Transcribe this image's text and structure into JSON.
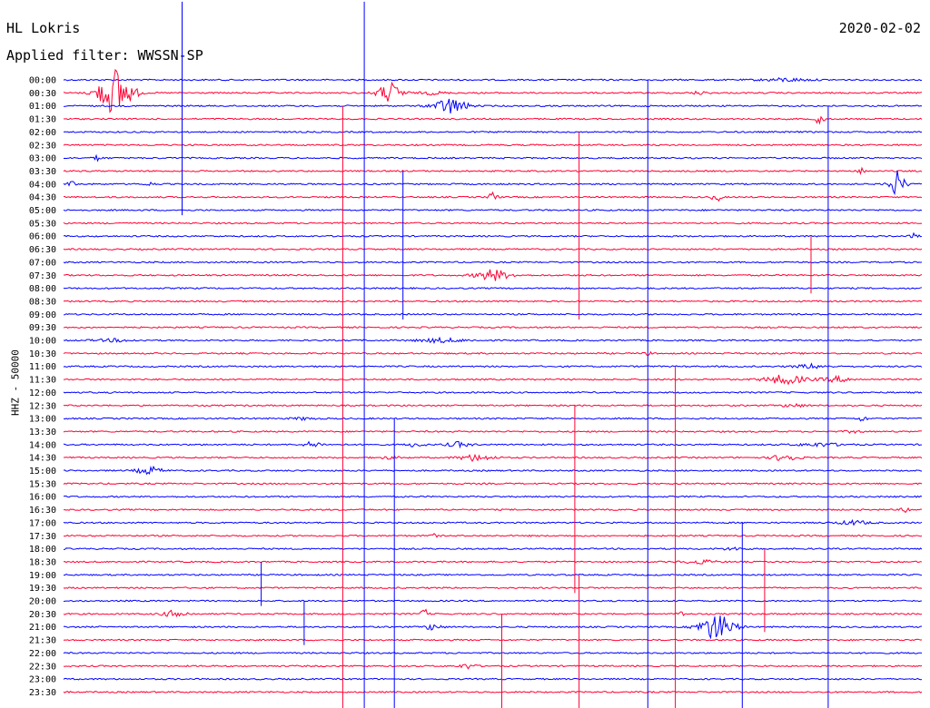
{
  "header": {
    "station": "HL Lokris",
    "date": "2020-02-02",
    "filter": "Applied filter: WWSSN-SP"
  },
  "chart_data": {
    "type": "line",
    "title": "HL Lokris",
    "ylabel": "HHZ - 50000",
    "row_labels": [
      "00:00",
      "00:30",
      "01:00",
      "01:30",
      "02:00",
      "02:30",
      "03:00",
      "03:30",
      "04:00",
      "04:30",
      "05:00",
      "05:30",
      "06:00",
      "06:30",
      "07:00",
      "07:30",
      "08:00",
      "08:30",
      "09:00",
      "09:30",
      "10:00",
      "10:30",
      "11:00",
      "11:30",
      "12:00",
      "12:30",
      "13:00",
      "13:30",
      "14:00",
      "14:30",
      "15:00",
      "15:30",
      "16:00",
      "16:30",
      "17:00",
      "17:30",
      "18:00",
      "18:30",
      "19:00",
      "19:30",
      "20:00",
      "20:30",
      "21:00",
      "21:30",
      "22:00",
      "22:30",
      "23:00",
      "23:30"
    ],
    "x_range_minutes": [
      0,
      30
    ],
    "colors": [
      "#0000ff",
      "#ff0033"
    ],
    "events": [
      {
        "row": 0,
        "t": 0.84,
        "amp": 0.4,
        "dur": 0.06
      },
      {
        "row": 1,
        "t": 0.06,
        "amp": 6,
        "dur": 0.04
      },
      {
        "row": 1,
        "t": 0.38,
        "amp": 2.5,
        "dur": 0.03
      },
      {
        "row": 1,
        "t": 0.43,
        "amp": 0.4,
        "dur": 0.03
      },
      {
        "row": 1,
        "t": 0.74,
        "amp": 0.4,
        "dur": 0.02
      },
      {
        "row": 2,
        "t": 0.45,
        "amp": 2,
        "dur": 0.04
      },
      {
        "row": 3,
        "t": 0.88,
        "amp": 1.5,
        "dur": 0.01
      },
      {
        "row": 6,
        "t": 0.04,
        "amp": 0.7,
        "dur": 0.01
      },
      {
        "row": 7,
        "t": 0.93,
        "amp": 0.8,
        "dur": 0.01
      },
      {
        "row": 8,
        "t": 0.01,
        "amp": 0.7,
        "dur": 0.01
      },
      {
        "row": 8,
        "t": 0.1,
        "amp": 0.5,
        "dur": 0.01
      },
      {
        "row": 8,
        "t": 0.97,
        "amp": 3,
        "dur": 0.02
      },
      {
        "row": 9,
        "t": 0.5,
        "amp": 1.5,
        "dur": 0.01
      },
      {
        "row": 9,
        "t": 0.76,
        "amp": 1.5,
        "dur": 0.01
      },
      {
        "row": 12,
        "t": 0.99,
        "amp": 0.6,
        "dur": 0.01
      },
      {
        "row": 15,
        "t": 0.5,
        "amp": 1.5,
        "dur": 0.04
      },
      {
        "row": 20,
        "t": 0.44,
        "amp": 0.5,
        "dur": 0.06
      },
      {
        "row": 20,
        "t": 0.06,
        "amp": 0.3,
        "dur": 0.05
      },
      {
        "row": 21,
        "t": 0.68,
        "amp": 0.4,
        "dur": 0.01
      },
      {
        "row": 22,
        "t": 0.87,
        "amp": 0.5,
        "dur": 0.04
      },
      {
        "row": 23,
        "t": 0.84,
        "amp": 1.2,
        "dur": 0.05
      },
      {
        "row": 23,
        "t": 0.9,
        "amp": 0.6,
        "dur": 0.04
      },
      {
        "row": 25,
        "t": 0.85,
        "amp": 0.4,
        "dur": 0.03
      },
      {
        "row": 26,
        "t": 0.93,
        "amp": 0.8,
        "dur": 0.01
      },
      {
        "row": 26,
        "t": 0.28,
        "amp": 0.3,
        "dur": 0.03
      },
      {
        "row": 27,
        "t": 0.92,
        "amp": 0.3,
        "dur": 0.02
      },
      {
        "row": 28,
        "t": 0.29,
        "amp": 0.8,
        "dur": 0.02
      },
      {
        "row": 28,
        "t": 0.41,
        "amp": 0.6,
        "dur": 0.02
      },
      {
        "row": 28,
        "t": 0.46,
        "amp": 0.6,
        "dur": 0.03
      },
      {
        "row": 28,
        "t": 0.88,
        "amp": 0.4,
        "dur": 0.06
      },
      {
        "row": 29,
        "t": 0.48,
        "amp": 0.8,
        "dur": 0.04
      },
      {
        "row": 29,
        "t": 0.84,
        "amp": 1,
        "dur": 0.03
      },
      {
        "row": 29,
        "t": 0.38,
        "amp": 0.3,
        "dur": 0.03
      },
      {
        "row": 30,
        "t": 0.1,
        "amp": 1,
        "dur": 0.03
      },
      {
        "row": 33,
        "t": 0.98,
        "amp": 0.8,
        "dur": 0.01
      },
      {
        "row": 34,
        "t": 0.92,
        "amp": 0.5,
        "dur": 0.04
      },
      {
        "row": 35,
        "t": 0.43,
        "amp": 0.5,
        "dur": 0.01
      },
      {
        "row": 36,
        "t": 0.78,
        "amp": 0.3,
        "dur": 0.03
      },
      {
        "row": 37,
        "t": 0.74,
        "amp": 0.5,
        "dur": 0.04
      },
      {
        "row": 41,
        "t": 0.13,
        "amp": 0.9,
        "dur": 0.03
      },
      {
        "row": 41,
        "t": 0.42,
        "amp": 1.2,
        "dur": 0.01
      },
      {
        "row": 41,
        "t": 0.72,
        "amp": 0.6,
        "dur": 0.01
      },
      {
        "row": 42,
        "t": 0.43,
        "amp": 0.8,
        "dur": 0.02
      },
      {
        "row": 42,
        "t": 0.76,
        "amp": 3.5,
        "dur": 0.04
      },
      {
        "row": 45,
        "t": 0.47,
        "amp": 0.6,
        "dur": 0.02
      }
    ],
    "spikes": [
      {
        "t": 0.138,
        "row_from": -6,
        "row_to": 9
      },
      {
        "t": 0.325,
        "row_from": 2,
        "row_to": 47
      },
      {
        "t": 0.35,
        "row_from": -6,
        "row_to": 47
      },
      {
        "t": 0.395,
        "row_from": 7,
        "row_to": 17
      },
      {
        "t": 0.385,
        "row_from": 26,
        "row_to": 47
      },
      {
        "t": 0.6,
        "row_from": 4,
        "row_to": 17
      },
      {
        "t": 0.595,
        "row_from": 25,
        "row_to": 38
      },
      {
        "t": 0.6,
        "row_from": 38,
        "row_to": 47
      },
      {
        "t": 0.68,
        "row_from": 0,
        "row_to": 47
      },
      {
        "t": 0.712,
        "row_from": 22,
        "row_to": 47
      },
      {
        "t": 0.79,
        "row_from": 34,
        "row_to": 47
      },
      {
        "t": 0.816,
        "row_from": 36,
        "row_to": 41
      },
      {
        "t": 0.89,
        "row_from": 2,
        "row_to": 47
      },
      {
        "t": 0.87,
        "row_from": 12,
        "row_to": 15
      },
      {
        "t": 0.51,
        "row_from": 41,
        "row_to": 47
      },
      {
        "t": 0.23,
        "row_from": 37,
        "row_to": 39
      },
      {
        "t": 0.28,
        "row_from": 40,
        "row_to": 42
      }
    ]
  }
}
